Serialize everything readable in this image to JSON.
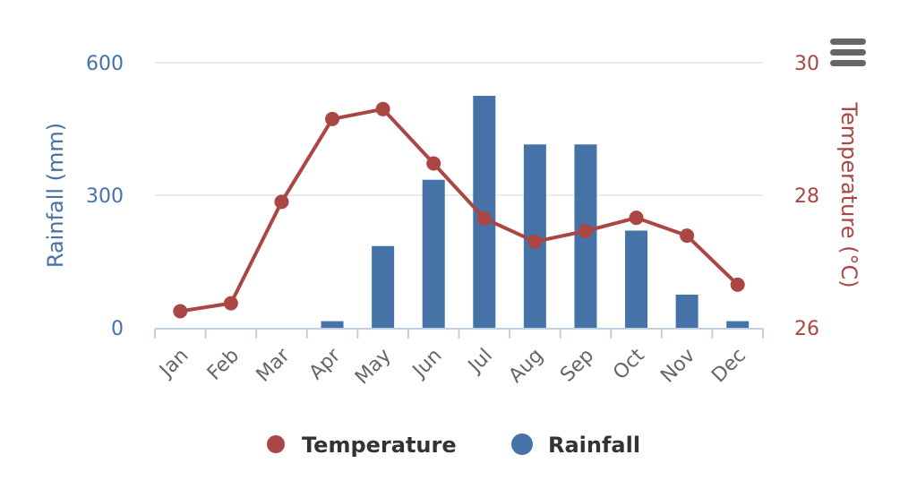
{
  "chart_data": {
    "type": "bar+line",
    "categories": [
      "Jan",
      "Feb",
      "Mar",
      "Apr",
      "May",
      "Jun",
      "Jul",
      "Aug",
      "Sep",
      "Oct",
      "Nov",
      "Dec"
    ],
    "series": [
      {
        "name": "Rainfall",
        "type": "bar",
        "axis": "left",
        "color": "#4572a7",
        "values": [
          0,
          0,
          0,
          15,
          185,
          335,
          525,
          415,
          415,
          220,
          75,
          15
        ]
      },
      {
        "name": "Temperature",
        "type": "line",
        "axis": "right",
        "color": "#aa4643",
        "values": [
          26.25,
          26.37,
          27.9,
          29.15,
          29.3,
          28.48,
          27.65,
          27.3,
          27.46,
          27.66,
          27.39,
          26.65
        ]
      }
    ],
    "y_left": {
      "label": "Rainfall (mm)",
      "range": [
        0,
        600
      ],
      "ticks": [
        "0",
        "300",
        "600"
      ],
      "color": "#4572a7"
    },
    "y_right": {
      "label": "Temperature (°C)",
      "range": [
        26,
        30
      ],
      "ticks": [
        "26",
        "28",
        "30"
      ],
      "color": "#aa4643"
    },
    "grid": true,
    "legend": {
      "position": "bottom",
      "items": [
        "Temperature",
        "Rainfall"
      ]
    }
  },
  "toolbar": {
    "menu_icon": "hamburger-menu-icon"
  }
}
